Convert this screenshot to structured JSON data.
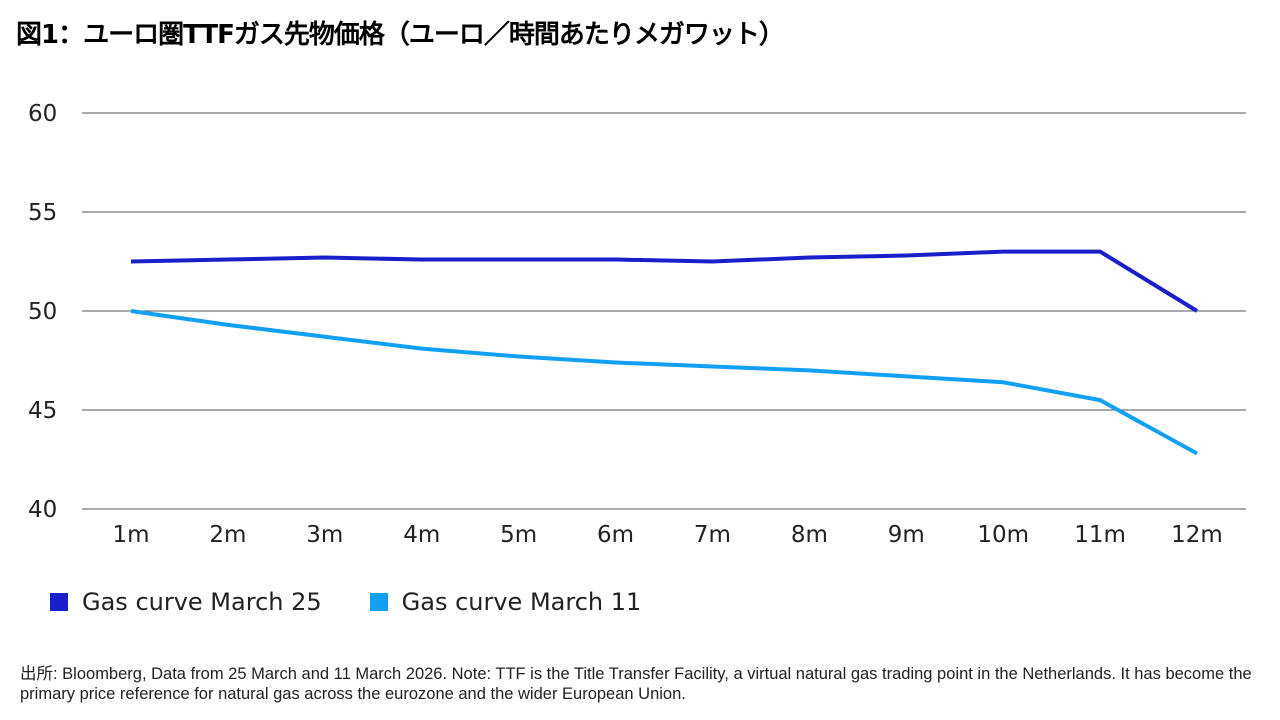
{
  "title": "図1：ユーロ圏TTFガス先物価格（ユーロ／時間あたりメガワット）",
  "chart_data": {
    "type": "line",
    "title": "図1：ユーロ圏TTFガス先物価格（ユーロ／時間あたりメガワット）",
    "xlabel": "",
    "ylabel": "",
    "categories": [
      "1m",
      "2m",
      "3m",
      "4m",
      "5m",
      "6m",
      "7m",
      "8m",
      "9m",
      "10m",
      "11m",
      "12m"
    ],
    "ylim": [
      40,
      60
    ],
    "yticks": [
      60,
      55,
      50,
      45,
      40
    ],
    "grid": true,
    "legend_position": "bottom-left",
    "series": [
      {
        "name": "Gas curve March 25",
        "color": "#1a1fcc",
        "values": [
          52.5,
          52.6,
          52.7,
          52.6,
          52.6,
          52.6,
          52.5,
          52.7,
          52.8,
          53.0,
          53.0,
          50.0
        ]
      },
      {
        "name": "Gas curve March 11",
        "color": "#12a0f5",
        "values": [
          50.0,
          49.3,
          48.7,
          48.1,
          47.7,
          47.4,
          47.2,
          47.0,
          46.7,
          46.4,
          45.5,
          42.8
        ]
      }
    ]
  },
  "note": "出所: Bloomberg, Data from 25 March and 11 March 2026. Note: TTF is the Title Transfer Facility, a virtual  natural gas trading point in the Netherlands. It has become the primary price reference for natural gas across the  eurozone and the wider European Union."
}
